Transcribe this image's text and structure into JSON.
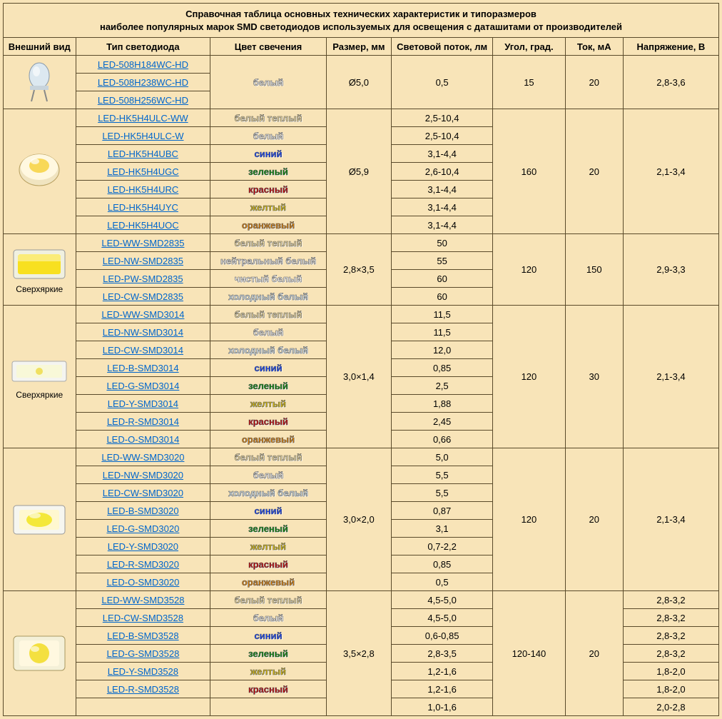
{
  "colors": {
    "page_bg": "#f8e4b8",
    "border": "#5a4a2a",
    "link": "#0066cc",
    "text": "#000000"
  },
  "title_line1": "Справочная таблица основных технических характеристик и типоразмеров",
  "title_line2": "наиболее популярных марок SMD светодиодов используемых для освещения с даташитами от производителей",
  "headers": {
    "image": "Внешний вид",
    "type": "Тип светодиода",
    "color": "Цвет свечения",
    "size": "Размер, мм",
    "flux": "Световой поток, лм",
    "angle": "Угол, град.",
    "current": "Ток, мА",
    "voltage": "Напряжение, В"
  },
  "captions": {
    "superbright": "Сверхяркие"
  },
  "color_labels": {
    "white": "белый",
    "warm_white": "белый теплый",
    "neutral_white": "нейтральный белый",
    "pure_white": "чистый белый",
    "cold_white": "холодный белый",
    "blue": "синий",
    "green": "зеленый",
    "red": "красный",
    "yellow": "желтый",
    "orange": "оранжевый"
  },
  "color_hex": {
    "white": "#f0f0f0",
    "warm_white": "#f5e0a0",
    "neutral_white": "#e8e8e8",
    "pure_white": "#ffffff",
    "cold_white": "#d8e8f0",
    "blue": "#1040ff",
    "green": "#008a00",
    "red": "#cc0000",
    "yellow": "#e0c000",
    "orange": "#e08000"
  },
  "groups": [
    {
      "icon": "round5",
      "caption": null,
      "size": "Ø5,0",
      "angle": "15",
      "current": "20",
      "voltage_group": "2,8-3,6",
      "flux_group": "0,5",
      "rows": [
        {
          "type": "LED-508H184WC-HD",
          "color": "white",
          "flux": null,
          "voltage": null
        },
        {
          "type": "LED-508H238WC-HD",
          "color": null,
          "flux": null,
          "voltage": null
        },
        {
          "type": "LED-508H256WC-HD",
          "color": null,
          "flux": null,
          "voltage": null
        }
      ]
    },
    {
      "icon": "strawhat",
      "caption": null,
      "size": "Ø5,9",
      "angle": "160",
      "current": "20",
      "voltage_group": "2,1-3,4",
      "rows": [
        {
          "type": "LED-HK5H4ULC-WW",
          "color": "warm_white",
          "flux": "2,5-10,4"
        },
        {
          "type": "LED-HK5H4ULC-W",
          "color": "white",
          "flux": "2,5-10,4"
        },
        {
          "type": "LED-HK5H4UBC",
          "color": "blue",
          "flux": "3,1-4,4"
        },
        {
          "type": "LED-HK5H4UGC",
          "color": "green",
          "flux": "2,6-10,4"
        },
        {
          "type": "LED-HK5H4URC",
          "color": "red",
          "flux": "3,1-4,4"
        },
        {
          "type": "LED-HK5H4UYC",
          "color": "yellow",
          "flux": "3,1-4,4"
        },
        {
          "type": "LED-HK5H4UOC",
          "color": "orange",
          "flux": "3,1-4,4"
        }
      ]
    },
    {
      "icon": "smd2835",
      "caption": "superbright",
      "size": "2,8×3,5",
      "angle": "120",
      "current": "150",
      "voltage_group": "2,9-3,3",
      "rows": [
        {
          "type": "LED-WW-SMD2835",
          "color": "warm_white",
          "flux": "50"
        },
        {
          "type": "LED-NW-SMD2835",
          "color": "neutral_white",
          "flux": "55"
        },
        {
          "type": "LED-PW-SMD2835",
          "color": "pure_white",
          "flux": "60"
        },
        {
          "type": "LED-CW-SMD2835",
          "color": "cold_white",
          "flux": "60"
        }
      ]
    },
    {
      "icon": "smd3014",
      "caption": "superbright",
      "size": "3,0×1,4",
      "angle": "120",
      "current": "30",
      "voltage_group": "2,1-3,4",
      "rows": [
        {
          "type": "LED-WW-SMD3014",
          "color": "warm_white",
          "flux": "11,5"
        },
        {
          "type": "LED-NW-SMD3014",
          "color": "white",
          "flux": "11,5"
        },
        {
          "type": "LED-CW-SMD3014",
          "color": "cold_white",
          "flux": "12,0"
        },
        {
          "type": "LED-B-SMD3014",
          "color": "blue",
          "flux": "0,85"
        },
        {
          "type": "LED-G-SMD3014",
          "color": "green",
          "flux": "2,5"
        },
        {
          "type": "LED-Y-SMD3014",
          "color": "yellow",
          "flux": "1,88"
        },
        {
          "type": "LED-R-SMD3014",
          "color": "red",
          "flux": "2,45"
        },
        {
          "type": "LED-O-SMD3014",
          "color": "orange",
          "flux": "0,66"
        }
      ]
    },
    {
      "icon": "smd3020",
      "caption": null,
      "size": "3,0×2,0",
      "angle": "120",
      "current": "20",
      "voltage_group": "2,1-3,4",
      "rows": [
        {
          "type": "LED-WW-SMD3020",
          "color": "warm_white",
          "flux": "5,0"
        },
        {
          "type": "LED-NW-SMD3020",
          "color": "white",
          "flux": "5,5"
        },
        {
          "type": "LED-CW-SMD3020",
          "color": "cold_white",
          "flux": "5,5"
        },
        {
          "type": "LED-B-SMD3020",
          "color": "blue",
          "flux": "0,87"
        },
        {
          "type": "LED-G-SMD3020",
          "color": "green",
          "flux": "3,1"
        },
        {
          "type": "LED-Y-SMD3020",
          "color": "yellow",
          "flux": "0,7-2,2"
        },
        {
          "type": "LED-R-SMD3020",
          "color": "red",
          "flux": "0,85"
        },
        {
          "type": "LED-O-SMD3020",
          "color": "orange",
          "flux": "0,5"
        }
      ]
    },
    {
      "icon": "smd3528",
      "caption": null,
      "size": "3,5×2,8",
      "angle": "120-140",
      "current": "20",
      "rows": [
        {
          "type": "LED-WW-SMD3528",
          "color": "warm_white",
          "flux": "4,5-5,0",
          "voltage": "2,8-3,2"
        },
        {
          "type": "LED-CW-SMD3528",
          "color": "white",
          "flux": "4,5-5,0",
          "voltage": "2,8-3,2"
        },
        {
          "type": "LED-B-SMD3528",
          "color": "blue",
          "flux": "0,6-0,85",
          "voltage": "2,8-3,2"
        },
        {
          "type": "LED-G-SMD3528",
          "color": "green",
          "flux": "2,8-3,5",
          "voltage": "2,8-3,2"
        },
        {
          "type": "LED-Y-SMD3528",
          "color": "yellow",
          "flux": "1,2-1,6",
          "voltage": "1,8-2,0"
        },
        {
          "type": "LED-R-SMD3528",
          "color": "red",
          "flux": "1,2-1,6",
          "voltage": "1,8-2,0"
        },
        {
          "type": "",
          "color": null,
          "flux": "1,0-1,6",
          "voltage": "2,0-2,8"
        }
      ]
    }
  ]
}
